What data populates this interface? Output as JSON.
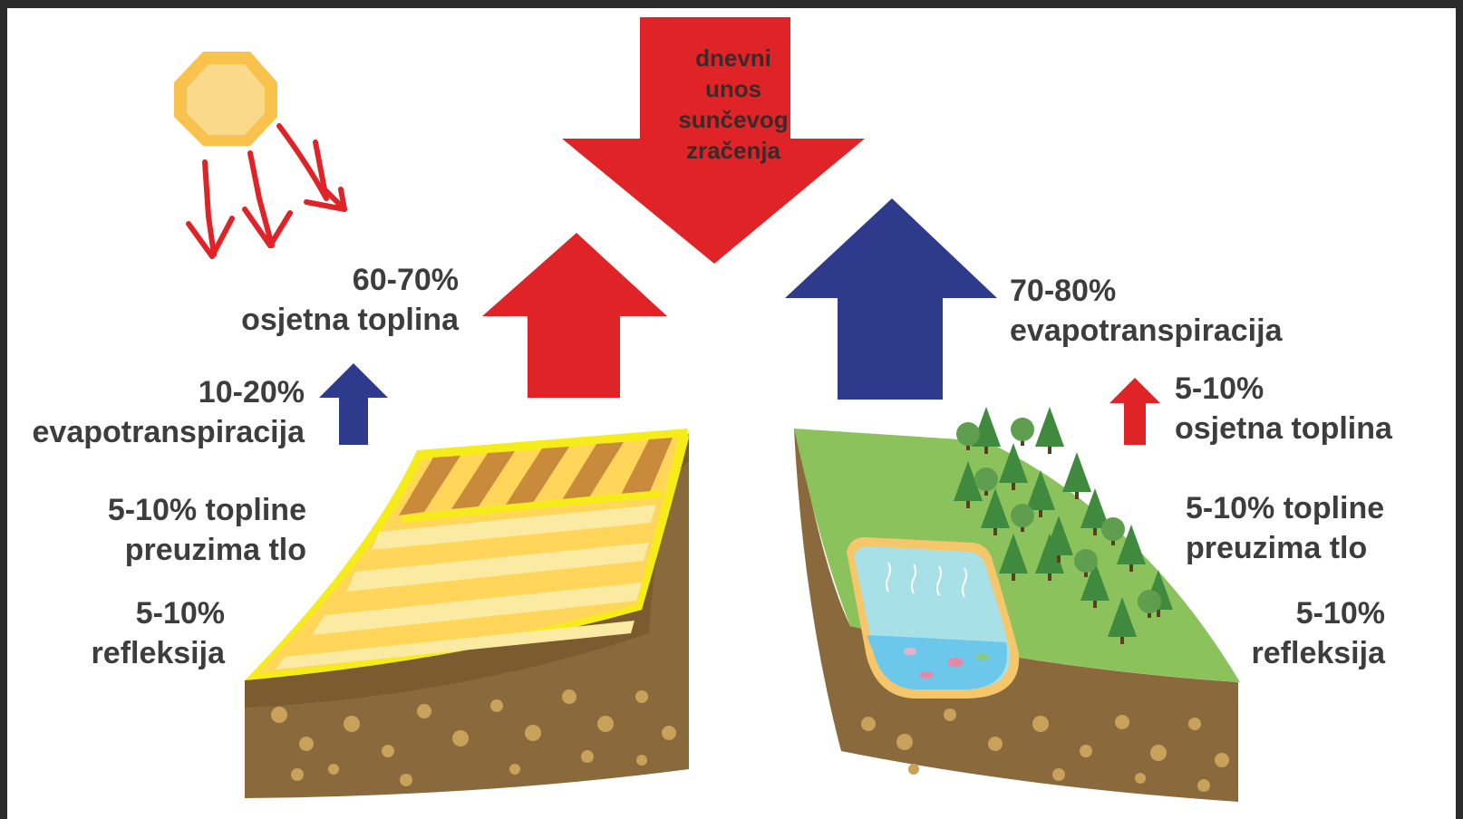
{
  "colors": {
    "red": "#e02326",
    "blue": "#2e3a8c",
    "text": "#3d3d3d",
    "soil": "#8a6a3c",
    "grass": "#8cc25b",
    "field_yellow": "#ffd65a",
    "water": "#7fd3e6",
    "tree": "#3f8a3f"
  },
  "top_arrow": {
    "line1": "dnevni",
    "line2": "unos",
    "line3": "sunčevog",
    "line4": "zračenja"
  },
  "left": {
    "main": {
      "pct": "60-70%",
      "text": "osjetna toplina"
    },
    "evapo": {
      "pct": "10-20%",
      "text": "evapotranspiracija"
    },
    "soil": {
      "line1": "5-10% topline",
      "line2": "preuzima tlo"
    },
    "reflect": {
      "pct": "5-10%",
      "text": "refleksija"
    }
  },
  "right": {
    "main": {
      "pct": "70-80%",
      "text": "evapotranspiracija"
    },
    "sensible": {
      "pct": "5-10%",
      "text": "osjetna toplina"
    },
    "soil": {
      "line1": "5-10% topline",
      "line2": "preuzima tlo"
    },
    "reflect": {
      "pct": "5-10%",
      "text": "refleksija"
    }
  },
  "icons": [
    "sun-icon",
    "sunray-arrow-icon",
    "cropland-block-icon",
    "forest-pond-block-icon",
    "tree-icon",
    "fish-icon"
  ]
}
